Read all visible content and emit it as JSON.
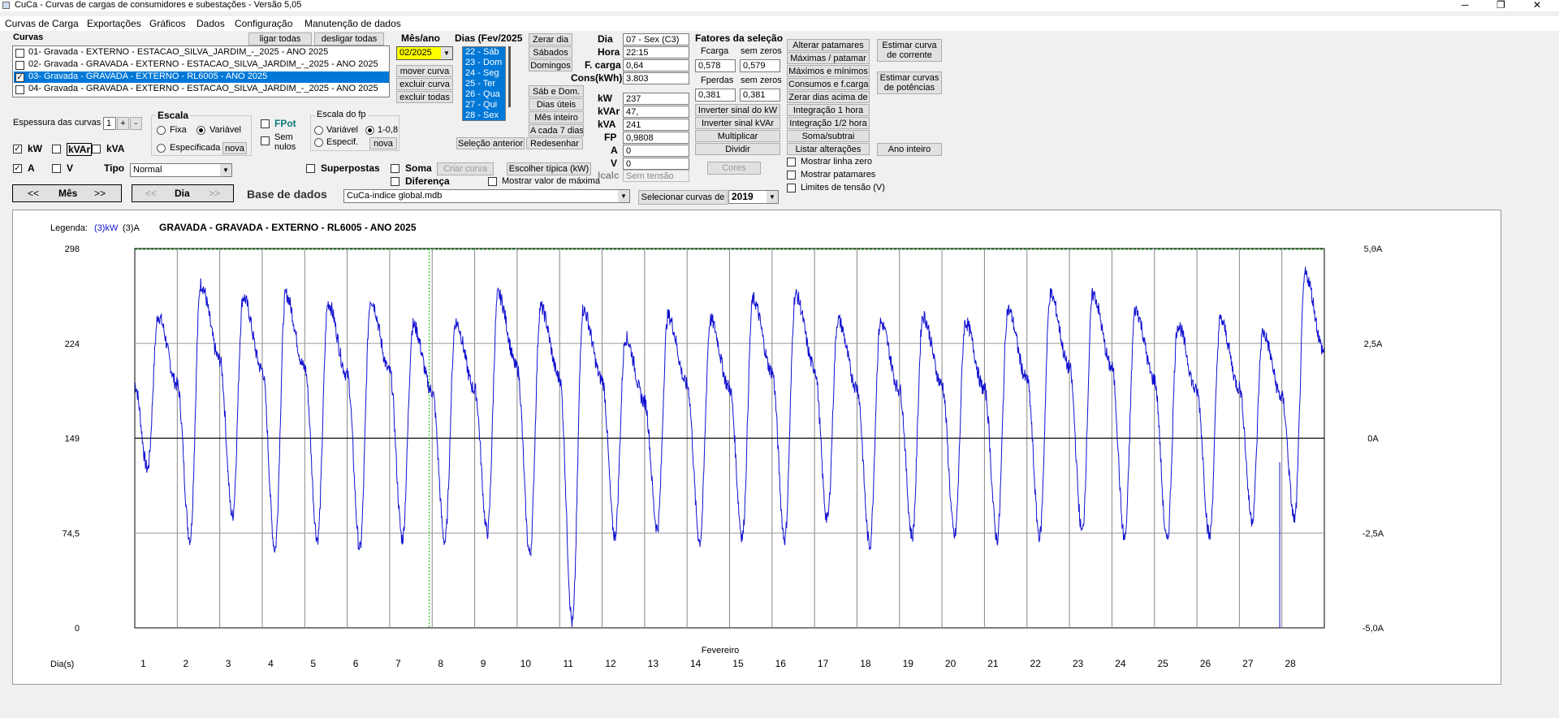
{
  "window": {
    "title": "CuCa - Curvas de cargas de consumidores e subestações - Versão 5,05",
    "controls": [
      "─",
      "❐",
      "✕"
    ]
  },
  "menu": [
    "Curvas de Carga",
    "Exportações",
    "Gráficos",
    "Dados",
    "Configuração",
    "Manutenção de dados"
  ],
  "curvas": {
    "title": "Curvas",
    "on_all": "ligar todas",
    "off_all": "desligar todas",
    "items": [
      {
        "label": "01- Gravada  - EXTERNO - ESTACAO_SILVA_JARDIM_-_2025 - ANO 2025",
        "checked": false,
        "selected": false
      },
      {
        "label": "02- Gravada  - GRAVADA  - EXTERNO - ESTACAO_SILVA_JARDIM_-_2025 - ANO 2025",
        "checked": false,
        "selected": false
      },
      {
        "label": "03- Gravada  - GRAVADA  - EXTERNO - RL6005 - ANO 2025",
        "checked": true,
        "selected": true
      },
      {
        "label": "04- Gravada  - GRAVADA  - EXTERNO - ESTACAO_SILVA_JARDIM_-_2025 - ANO 2025",
        "checked": false,
        "selected": false
      }
    ]
  },
  "mesano": {
    "label": "Mês/ano",
    "value": "02/2025",
    "mover": "mover curva",
    "excluir": "excluir curva",
    "excluir_todas": "excluir todas"
  },
  "dias": {
    "label": "Dias (Fev/2025",
    "items": [
      "22 - Sáb",
      "23 - Dom",
      "24 - Seg",
      "25 - Ter",
      "26 - Qua",
      "27 - Qui",
      "28 - Sex"
    ]
  },
  "diabtns": {
    "zerar": "Zerar dia",
    "sabados": "Sábados",
    "domingos": "Domingos",
    "sabdom": "Sáb e Dom.",
    "uteis": "Dias úteis",
    "mes": "Mês inteiro",
    "cada7": "A cada 7 dias",
    "redesenhar": "Redesenhar",
    "selant": "Seleção anterior"
  },
  "info": {
    "dia": {
      "label": "Dia",
      "value": "07 - Sex (C3)"
    },
    "hora": {
      "label": "Hora",
      "value": "22:15"
    },
    "fcarga": {
      "label": "F. carga",
      "value": "0,64"
    },
    "cons": {
      "label": "Cons(kWh)",
      "value": "3.803"
    },
    "kw": {
      "label": "kW",
      "value": "237"
    },
    "kvar": {
      "label": "kVAr",
      "value": "47,"
    },
    "kva": {
      "label": "kVA",
      "value": "241"
    },
    "fp": {
      "label": "FP",
      "value": "0,9808"
    },
    "a": {
      "label": "A",
      "value": "0"
    },
    "v": {
      "label": "V",
      "value": "0"
    },
    "icalc": {
      "label": "Icalc",
      "placeholder": "Sem tensão"
    }
  },
  "fatores": {
    "title": "Fatores da seleção",
    "fcarga": "Fcarga",
    "semzeros": "sem zeros",
    "fcarga_v": "0,578",
    "fcarga_sz": "0,579",
    "fperdas": "Fperdas",
    "fperdas_v": "0,381",
    "fperdas_sz": "0,381",
    "inv_kw": "Inverter sinal do kW",
    "inv_kvar": "Inverter sinal kVAr",
    "mult": "Multiplicar",
    "div": "Dividir",
    "cores": "Cores"
  },
  "actions": [
    "Alterar patamares",
    "Máximas / patamar",
    "Máximos e mínimos",
    "Consumos e f.carga",
    "Zerar dias acima de",
    "Integração 1 hora",
    "Integração 1/2 hora",
    "Soma/subtrai",
    "Listar alterações"
  ],
  "estimar": {
    "corrente": "Estimar curva de corrente",
    "potencias": "Estimar curvas de potências",
    "ano": "Ano inteiro"
  },
  "mostrar": {
    "linha_zero": "Mostrar linha zero",
    "patamares": "Mostrar patamares",
    "limites": "Limites de tensão (V)"
  },
  "espessura": {
    "label": "Espessura das curvas",
    "value": "1",
    "plus": "+",
    "minus": "-"
  },
  "escala": {
    "title": "Escala",
    "fixa": "Fixa",
    "variavel": "Variável",
    "especificada": "Especificada",
    "nova": "nova"
  },
  "fpot": {
    "label": "FPot",
    "semnulos": "Sem nulos"
  },
  "escalafp": {
    "title": "Escala do fp",
    "variavel": "Variável",
    "range": "1-0,8",
    "especif": "Especif.",
    "nova": "nova"
  },
  "series": {
    "kw": "kW",
    "kvar": "kVAr",
    "kva": "kVA",
    "a": "A",
    "v": "V",
    "tipo": "Tipo",
    "tipo_value": "Normal"
  },
  "superpostas": "Superpostas",
  "soma": "Soma",
  "criar": "Criar curva",
  "diferenca": "Diferença",
  "tipica": "Escolher típica (kW)",
  "mostrar_max": "Mostrar valor de máxima",
  "nav": {
    "prev": "<<",
    "mes": "Mês",
    "next": ">>",
    "dia": "Dia"
  },
  "base": {
    "label": "Base de dados",
    "value": "CuCa-indice global.mdb",
    "selecionar": "Selecionar curvas de",
    "ano": "2019"
  },
  "chart_data": {
    "type": "line",
    "legend_label": "Legenda:",
    "legend_kw": "(3)kW",
    "legend_a": "(3)A",
    "title": "GRAVADA  - GRAVADA  - EXTERNO - RL6005 - ANO 2025",
    "xlabel": "Fevereiro",
    "xprefix": "Dia(s)",
    "x_ticks": [
      "1",
      "2",
      "3",
      "4",
      "5",
      "6",
      "7",
      "8",
      "9",
      "10",
      "11",
      "12",
      "13",
      "14",
      "15",
      "16",
      "17",
      "18",
      "19",
      "20",
      "21",
      "22",
      "23",
      "24",
      "25",
      "26",
      "27",
      "28"
    ],
    "y_ticks": [
      "298",
      "224",
      "149",
      "74,5",
      "0"
    ],
    "y2_ticks": [
      "5,0A",
      "2,5A",
      "0A",
      "-2,5A",
      "-5,0A"
    ],
    "y2_top_extra": "5,6",
    "ylim": [
      0,
      298
    ],
    "series": [
      {
        "name": "(3)kW",
        "color": "#1010d0",
        "daily_max": [
          245,
          270,
          260,
          262,
          255,
          258,
          238,
          240,
          262,
          252,
          250,
          228,
          245,
          242,
          258,
          262,
          242,
          240,
          245,
          240,
          250,
          262,
          262,
          250,
          238,
          242,
          232,
          278
        ],
        "daily_min": [
          125,
          70,
          88,
          62,
          70,
          62,
          70,
          68,
          75,
          58,
          4,
          72,
          78,
          68,
          72,
          70,
          85,
          65,
          72,
          72,
          70,
          72,
          75,
          70,
          68,
          72,
          85,
          85
        ]
      }
    ],
    "selected_day": 7.93
  }
}
